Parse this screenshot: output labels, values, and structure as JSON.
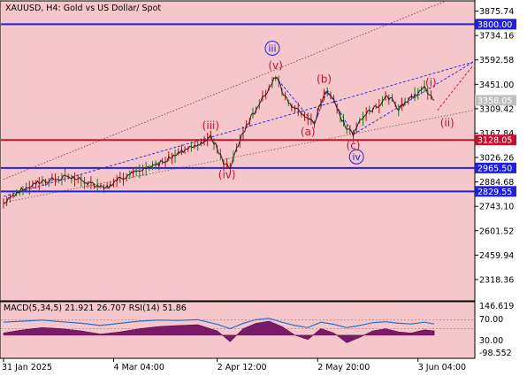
{
  "header": {
    "title": "XAUUSD, H4:  Gold vs US Dollar/ Spot"
  },
  "indicator": {
    "label": "MACD(5,34,5) 21.921 26.707 RSI(14) 51.86",
    "ticks": [
      "146.619",
      "70.00",
      "30.00",
      "-98.552"
    ]
  },
  "chart_data": {
    "type": "line",
    "symbol": "XAUUSD",
    "timeframe": "H4",
    "y_ticks": [
      3875.74,
      3734.16,
      3592.58,
      3451.0,
      3309.42,
      3167.84,
      3026.26,
      2884.68,
      2743.1,
      2601.52,
      2459.94,
      2318.36
    ],
    "ylim": [
      2200,
      3930
    ],
    "x_tick_labels": [
      "31 Jan 2025",
      "4 Mar 04:00",
      "2 Apr 12:00",
      "2 May 20:00",
      "3 Jun 04:00"
    ],
    "x_tick_values": [
      0,
      34,
      66,
      97,
      128
    ],
    "current_price": "3358.05",
    "price_path": [
      [
        0,
        2760
      ],
      [
        6,
        2845
      ],
      [
        12,
        2890
      ],
      [
        16,
        2900
      ],
      [
        20,
        2915
      ],
      [
        24,
        2895
      ],
      [
        28,
        2870
      ],
      [
        32,
        2855
      ],
      [
        36,
        2905
      ],
      [
        40,
        2935
      ],
      [
        44,
        2960
      ],
      [
        48,
        2990
      ],
      [
        52,
        3030
      ],
      [
        56,
        3070
      ],
      [
        60,
        3110
      ],
      [
        63,
        3120
      ],
      [
        64,
        3148
      ],
      [
        66,
        3080
      ],
      [
        68,
        2990
      ],
      [
        70,
        2965
      ],
      [
        72,
        3080
      ],
      [
        74,
        3170
      ],
      [
        76,
        3245
      ],
      [
        78,
        3305
      ],
      [
        80,
        3380
      ],
      [
        82,
        3430
      ],
      [
        84,
        3495
      ],
      [
        86,
        3420
      ],
      [
        88,
        3340
      ],
      [
        90,
        3320
      ],
      [
        92,
        3290
      ],
      [
        94,
        3255
      ],
      [
        96,
        3220
      ],
      [
        98,
        3350
      ],
      [
        100,
        3418
      ],
      [
        102,
        3360
      ],
      [
        104,
        3265
      ],
      [
        106,
        3195
      ],
      [
        108,
        3160
      ],
      [
        110,
        3245
      ],
      [
        112,
        3285
      ],
      [
        114,
        3310
      ],
      [
        116,
        3330
      ],
      [
        118,
        3390
      ],
      [
        120,
        3360
      ],
      [
        122,
        3300
      ],
      [
        124,
        3345
      ],
      [
        126,
        3370
      ],
      [
        128,
        3400
      ],
      [
        130,
        3430
      ],
      [
        132,
        3390
      ],
      [
        133,
        3358
      ]
    ],
    "levels": [
      {
        "price": "3800.00",
        "value": 3800.0,
        "color": "#2020e0"
      },
      {
        "price": "3128.05",
        "value": 3128.05,
        "color": "#c8102e"
      },
      {
        "price": "2965.50",
        "value": 2965.5,
        "color": "#2020e0"
      },
      {
        "price": "2829.55",
        "value": 2829.55,
        "color": "#2020e0"
      }
    ],
    "wave_labels": [
      {
        "text": "(iii)",
        "x": 64,
        "y": 3190,
        "color": "#c8102e"
      },
      {
        "text": "(iv)",
        "x": 69,
        "y": 2905,
        "color": "#c8102e"
      },
      {
        "text": "(v)",
        "x": 84,
        "y": 3540,
        "color": "#c8102e"
      },
      {
        "text": "iii",
        "x": 83,
        "y": 3640,
        "color": "#2020e0",
        "circled": true
      },
      {
        "text": "(a)",
        "x": 94,
        "y": 3155,
        "color": "#c8102e"
      },
      {
        "text": "(b)",
        "x": 99,
        "y": 3460,
        "color": "#c8102e"
      },
      {
        "text": "(c)",
        "x": 108,
        "y": 3075,
        "color": "#c8102e"
      },
      {
        "text": "iv",
        "x": 109,
        "y": 3010,
        "color": "#2020e0",
        "circled": true
      },
      {
        "text": "(i)",
        "x": 132,
        "y": 3440,
        "color": "#c8102e"
      },
      {
        "text": "(ii)",
        "x": 137,
        "y": 3205,
        "color": "#c8102e"
      }
    ],
    "macd": {
      "ylim": [
        -98.552,
        146.619
      ],
      "levels": [
        70,
        30
      ],
      "x": [
        0,
        6,
        12,
        18,
        24,
        30,
        36,
        42,
        48,
        54,
        60,
        66,
        70,
        74,
        78,
        82,
        86,
        90,
        94,
        98,
        102,
        106,
        110,
        114,
        118,
        122,
        126,
        130,
        133
      ],
      "histogram": [
        10,
        25,
        35,
        30,
        20,
        5,
        15,
        30,
        40,
        45,
        48,
        20,
        -30,
        30,
        55,
        65,
        40,
        0,
        -20,
        30,
        10,
        -35,
        -10,
        20,
        30,
        15,
        10,
        25,
        20
      ],
      "rsi": [
        60,
        65,
        70,
        62,
        55,
        45,
        55,
        65,
        70,
        68,
        72,
        50,
        30,
        55,
        72,
        78,
        60,
        45,
        35,
        60,
        50,
        35,
        45,
        58,
        62,
        55,
        52,
        60,
        52
      ]
    }
  }
}
